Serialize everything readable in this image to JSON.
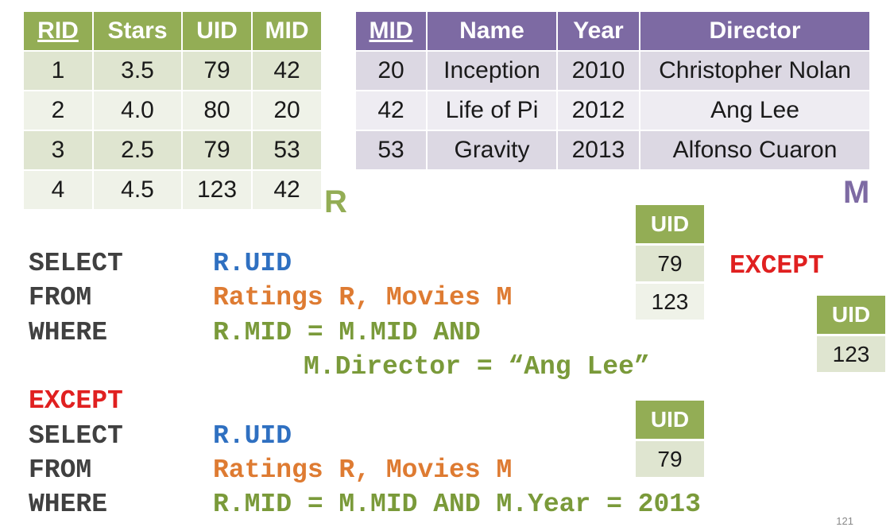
{
  "ratings": {
    "headers": [
      "RID",
      "Stars",
      "UID",
      "MID"
    ],
    "rows": [
      [
        "1",
        "3.5",
        "79",
        "42"
      ],
      [
        "2",
        "4.0",
        "80",
        "20"
      ],
      [
        "3",
        "2.5",
        "79",
        "53"
      ],
      [
        "4",
        "4.5",
        "123",
        "42"
      ]
    ],
    "letter": "R",
    "color": "#93ad55"
  },
  "movies": {
    "headers": [
      "MID",
      "Name",
      "Year",
      "Director"
    ],
    "rows": [
      [
        "20",
        "Inception",
        "2010",
        "Christopher Nolan"
      ],
      [
        "42",
        "Life of Pi",
        "2012",
        "Ang Lee"
      ],
      [
        "53",
        "Gravity",
        "2013",
        "Alfonso Cuaron"
      ]
    ],
    "letter": "M",
    "color": "#7d6aa3"
  },
  "result1": {
    "header": "UID",
    "rows": [
      "79",
      "123"
    ]
  },
  "result2": {
    "header": "UID",
    "rows": [
      "123"
    ]
  },
  "result3": {
    "header": "UID",
    "rows": [
      "79"
    ]
  },
  "except_label": "EXCEPT",
  "query": {
    "select1": "SELECT",
    "select1_value": "R.UID",
    "from1": "FROM",
    "from1_value": "Ratings R, Movies M",
    "where1": "WHERE",
    "where1_value": "R.MID = M.MID AND",
    "where1_cont": "M.Director = “Ang Lee”",
    "except": "EXCEPT",
    "select2": "SELECT",
    "select2_value": "R.UID",
    "from2": "FROM",
    "from2_value": "Ratings R, Movies M",
    "where2": "WHERE",
    "where2_value": "R.MID = M.MID AND M.Year = 2013"
  },
  "page_number": "121"
}
